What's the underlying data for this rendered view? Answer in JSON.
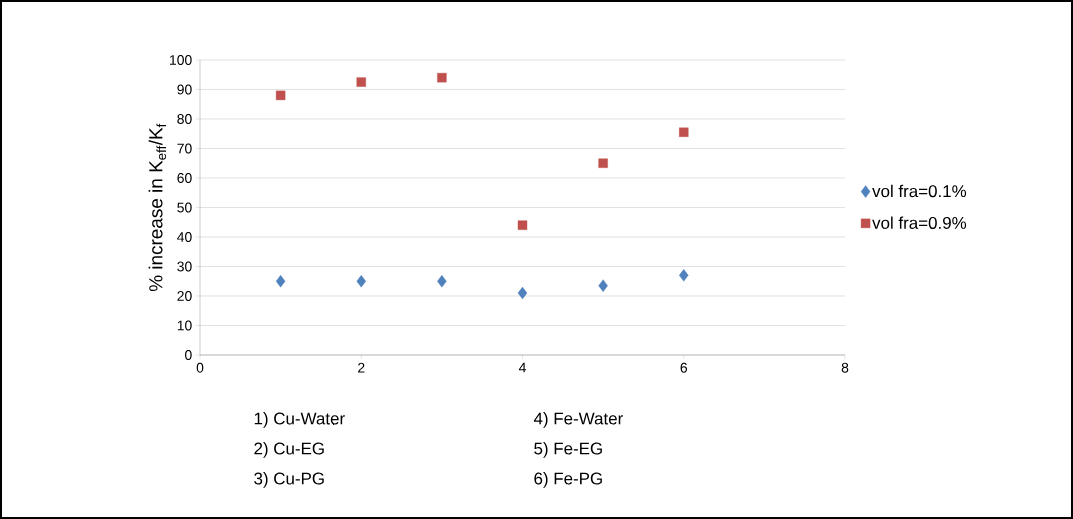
{
  "chart_data": {
    "type": "scatter",
    "ylabel": "% increase in K$_{eff}$/K$_{f}$",
    "xlim": [
      0,
      8
    ],
    "xticks": [
      0,
      2,
      4,
      6,
      8
    ],
    "ylim": [
      0,
      100
    ],
    "yticks": [
      0,
      10,
      20,
      30,
      40,
      50,
      60,
      70,
      80,
      90,
      100
    ],
    "x": [
      1,
      2,
      3,
      4,
      5,
      6
    ],
    "series": [
      {
        "name": "vol fra=0.1%",
        "color": "#4f81bd",
        "marker": "diamond",
        "values": [
          25,
          25,
          25,
          21,
          23.5,
          27
        ]
      },
      {
        "name": "vol fra=0.9%",
        "color": "#c0504d",
        "marker": "square",
        "values": [
          88,
          92.5,
          94,
          44,
          65,
          75.5
        ]
      }
    ],
    "grid": "y",
    "legend": "right",
    "annotations": [
      "1) Cu-Water",
      "2) Cu-EG",
      "3) Cu-PG",
      "4) Fe-Water",
      "5) Fe-EG",
      "6) Fe-PG"
    ]
  }
}
